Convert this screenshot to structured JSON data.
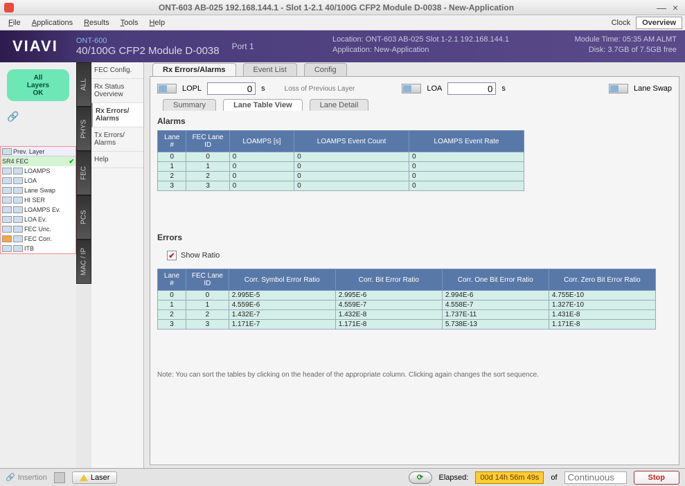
{
  "window": {
    "title": "ONT-603  AB-025 192.168.144.1 - Slot 1-2.1 40/100G CFP2 Module D-0038 - New-Application"
  },
  "menu": {
    "file": "File",
    "applications": "Applications",
    "results": "Results",
    "tools": "Tools",
    "help": "Help",
    "clock": "Clock",
    "overview": "Overview"
  },
  "banner": {
    "logo": "VIAVI",
    "dev_top": "ONT-600",
    "dev_bot": "40/100G CFP2 Module D-0038",
    "port": "Port 1",
    "location_label": "Location:",
    "location_value": "ONT-603 AB-025 Slot 1-2.1  192.168.144.1",
    "app_label": "Application:",
    "app_value": "New-Application",
    "modtime_label": "Module Time:",
    "modtime_value": "05:35 AM ALMT",
    "disk_label": "Disk:",
    "disk_value": "3.7GB of 7.5GB free"
  },
  "status": {
    "l1": "All",
    "l2": "Layers",
    "l3": "OK"
  },
  "layers": {
    "prev": "Prev. Layer",
    "active": "SR4 FEC",
    "items": [
      "LOAMPS",
      "LOA",
      "Lane Swap",
      "HI SER",
      "LOAMPS Ev.",
      "LOA Ev.",
      "FEC Unc.",
      "FEC Corr.",
      "ITB"
    ]
  },
  "vtabs": [
    "ALL",
    "PHYS",
    "FEC",
    "PCS",
    "MAC / IP"
  ],
  "subnav": {
    "items": [
      "FEC Config.",
      "Rx Status Overview",
      "Rx Errors/ Alarms",
      "Tx Errors/ Alarms",
      "Help"
    ],
    "active": 2
  },
  "maintabs": {
    "items": [
      "Rx Errors/Alarms",
      "Event List",
      "Config"
    ],
    "active": 0
  },
  "params": {
    "lopl_label": "LOPL",
    "lopl_value": "0",
    "lopl_unit": "s",
    "lopl_desc": "Loss of Previous Layer",
    "loa_label": "LOA",
    "loa_value": "0",
    "loa_unit": "s",
    "laneswap_label": "Lane Swap"
  },
  "subtabs": {
    "items": [
      "Summary",
      "Lane Table View",
      "Lane Detail"
    ],
    "active": 1
  },
  "alarms": {
    "title": "Alarms",
    "headers": [
      "Lane #",
      "FEC Lane ID",
      "LOAMPS [s]",
      "LOAMPS Event Count",
      "LOAMPS Event Rate"
    ],
    "rows": [
      [
        "0",
        "0",
        "0",
        "0",
        "0"
      ],
      [
        "1",
        "1",
        "0",
        "0",
        "0"
      ],
      [
        "2",
        "2",
        "0",
        "0",
        "0"
      ],
      [
        "3",
        "3",
        "0",
        "0",
        "0"
      ]
    ]
  },
  "errors": {
    "title": "Errors",
    "show_ratio": "Show Ratio",
    "headers": [
      "Lane #",
      "FEC Lane ID",
      "Corr. Symbol Error Ratio",
      "Corr. Bit Error Ratio",
      "Corr. One Bit Error Ratio",
      "Corr. Zero Bit Error Ratio"
    ],
    "rows": [
      [
        "0",
        "0",
        "2.995E-5",
        "2.995E-6",
        "2.994E-6",
        "4.755E-10"
      ],
      [
        "1",
        "1",
        "4.559E-6",
        "4.559E-7",
        "4.558E-7",
        "1.327E-10"
      ],
      [
        "2",
        "2",
        "1.432E-7",
        "1.432E-8",
        "1.737E-11",
        "1.431E-8"
      ],
      [
        "3",
        "3",
        "1.171E-7",
        "1.171E-8",
        "5.738E-13",
        "1.171E-8"
      ]
    ]
  },
  "note": "Note:   You can sort the tables by clicking on the header of the appropriate column. Clicking again changes the sort sequence.",
  "footer": {
    "insertion": "Insertion",
    "laser": "Laser",
    "elapsed_label": "Elapsed:",
    "elapsed_value": "00d 14h 56m 49s",
    "of": "of",
    "continuous": "Continuous",
    "stop": "Stop"
  },
  "colors": {
    "th_bg": "#5878a8",
    "td_bg": "#d4eee8",
    "pill": "#6ee7b7",
    "banner_start": "#2d1b4e",
    "banner_end": "#5a4a8a",
    "elapsed_bg": "#ffcc33"
  }
}
